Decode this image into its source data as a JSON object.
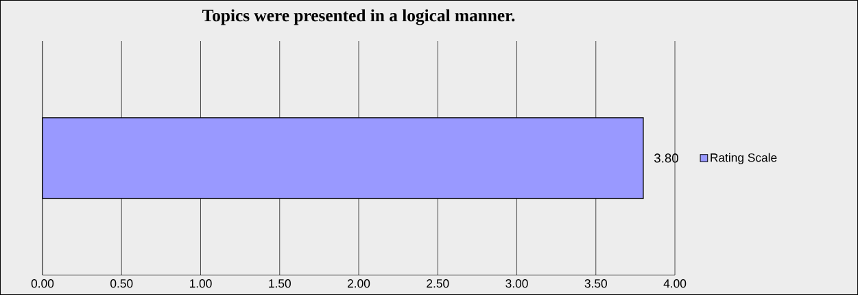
{
  "chart_data": {
    "type": "bar",
    "orientation": "horizontal",
    "title": "Topics were presented in a logical manner.",
    "categories": [
      null
    ],
    "series": [
      {
        "name": "Rating Scale",
        "color": "#9999ff",
        "values": [
          3.8
        ],
        "value_labels": [
          "3.80"
        ]
      }
    ],
    "xlim": [
      0,
      4
    ],
    "xticks": [
      {
        "value": 0,
        "label": "0.00"
      },
      {
        "value": 0.5,
        "label": "0.50"
      },
      {
        "value": 1,
        "label": "1.00"
      },
      {
        "value": 1.5,
        "label": "1.50"
      },
      {
        "value": 2,
        "label": "2.00"
      },
      {
        "value": 2.5,
        "label": "2.50"
      },
      {
        "value": 3,
        "label": "3.00"
      },
      {
        "value": 3.5,
        "label": "3.50"
      },
      {
        "value": 4,
        "label": "4.00"
      }
    ],
    "grid": "x",
    "legend": "right"
  }
}
